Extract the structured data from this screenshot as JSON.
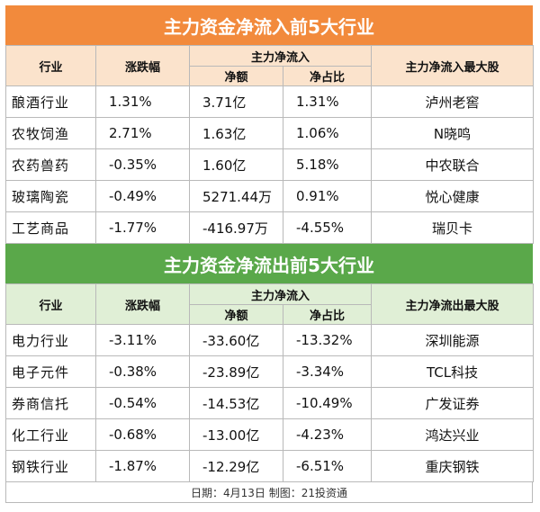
{
  "inflow": {
    "title": "主力资金净流入前5大行业",
    "headers": {
      "industry": "行业",
      "change": "涨跌幅",
      "main_flow": "主力净流入",
      "net_amount": "净额",
      "net_ratio": "净占比",
      "top_stock": "主力净流入最大股"
    },
    "rows": [
      {
        "industry": "酿酒行业",
        "change": "1.31%",
        "net_amount": "3.71亿",
        "net_ratio": "1.31%",
        "top_stock": "泸州老窖"
      },
      {
        "industry": "农牧饲渔",
        "change": "2.71%",
        "net_amount": "1.63亿",
        "net_ratio": "1.06%",
        "top_stock": "N晓鸣"
      },
      {
        "industry": "农药兽药",
        "change": "-0.35%",
        "net_amount": "1.60亿",
        "net_ratio": "5.18%",
        "top_stock": "中农联合"
      },
      {
        "industry": "玻璃陶瓷",
        "change": "-0.49%",
        "net_amount": "5271.44万",
        "net_ratio": "0.91%",
        "top_stock": "悦心健康"
      },
      {
        "industry": "工艺商品",
        "change": "-1.77%",
        "net_amount": "-416.97万",
        "net_ratio": "-4.55%",
        "top_stock": "瑞贝卡"
      }
    ]
  },
  "outflow": {
    "title": "主力资金净流出前5大行业",
    "headers": {
      "industry": "行业",
      "change": "涨跌幅",
      "main_flow": "主力净流入",
      "net_amount": "净额",
      "net_ratio": "净占比",
      "top_stock": "主力净流出最大股"
    },
    "rows": [
      {
        "industry": "电力行业",
        "change": "-3.11%",
        "net_amount": "-33.60亿",
        "net_ratio": "-13.32%",
        "top_stock": "深圳能源"
      },
      {
        "industry": "电子元件",
        "change": "-0.38%",
        "net_amount": "-23.89亿",
        "net_ratio": "-3.34%",
        "top_stock": "TCL科技"
      },
      {
        "industry": "券商信托",
        "change": "-0.54%",
        "net_amount": "-14.53亿",
        "net_ratio": "-10.49%",
        "top_stock": "广发证券"
      },
      {
        "industry": "化工行业",
        "change": "-0.68%",
        "net_amount": "-13.00亿",
        "net_ratio": "-4.23%",
        "top_stock": "鸿达兴业"
      },
      {
        "industry": "钢铁行业",
        "change": "-1.87%",
        "net_amount": "-12.29亿",
        "net_ratio": "-6.51%",
        "top_stock": "重庆钢铁"
      }
    ]
  },
  "footer": "日期：4月13日 制图：21投资通",
  "colors": {
    "inflow_band": "#f28a3c",
    "inflow_header": "#fbe3cc",
    "outflow_band": "#5aa84a",
    "outflow_header": "#e0efd6"
  }
}
